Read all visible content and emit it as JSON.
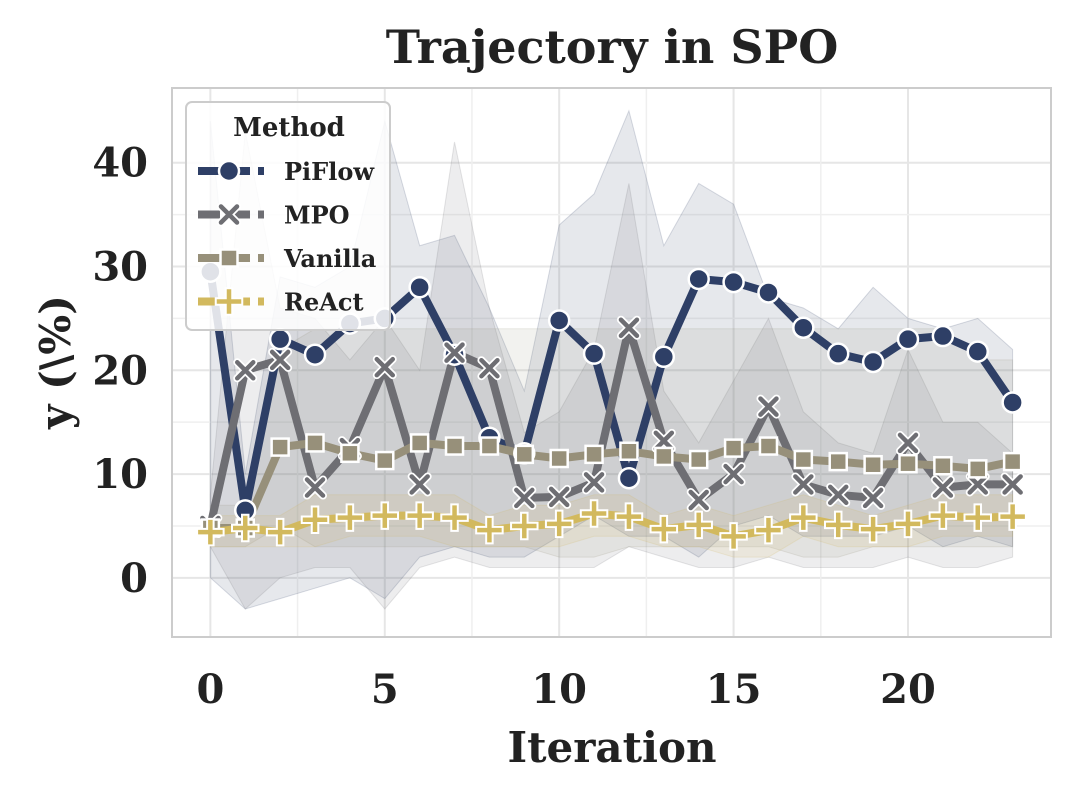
{
  "chart_data": {
    "type": "line",
    "title": "Trajectory in SPO",
    "xlabel": "Iteration",
    "ylabel": "y (\\%)",
    "xlim": [
      -1.1,
      24.1
    ],
    "ylim": [
      -5.7,
      47.2
    ],
    "xticks": [
      0,
      5,
      10,
      15,
      20
    ],
    "yticks": [
      0,
      10,
      20,
      30,
      40
    ],
    "grid": true,
    "legend": {
      "title": "Method",
      "placement": "top-left"
    },
    "x": [
      0,
      1,
      2,
      3,
      4,
      5,
      6,
      7,
      8,
      9,
      10,
      11,
      12,
      13,
      14,
      15,
      16,
      17,
      18,
      19,
      20,
      21,
      22,
      23
    ],
    "series": [
      {
        "name": "PiFlow",
        "color": "#2e3f66",
        "marker": "circle",
        "values": [
          29.5,
          6.5,
          23.0,
          21.5,
          24.5,
          25.0,
          28.0,
          21.5,
          13.5,
          12.0,
          24.8,
          21.6,
          9.6,
          21.3,
          28.8,
          28.5,
          27.5,
          24.1,
          21.6,
          20.8,
          23.0,
          23.3,
          21.8,
          16.9
        ],
        "band_lower": [
          0,
          -3,
          -2,
          -1,
          0,
          -2,
          2,
          3,
          2,
          2,
          4,
          6,
          4,
          4,
          2,
          5,
          6,
          4,
          4,
          4,
          5,
          3,
          4,
          3
        ],
        "band_upper": [
          44,
          10,
          29,
          28,
          30,
          44,
          32,
          33,
          26,
          18,
          34,
          37,
          45,
          32,
          38,
          36,
          27,
          26,
          24,
          28,
          25,
          24,
          25,
          22
        ]
      },
      {
        "name": "MPO",
        "color": "#6e6e73",
        "marker": "x",
        "values": [
          5.0,
          20.0,
          21.0,
          8.7,
          12.5,
          20.3,
          9.0,
          21.7,
          20.2,
          7.7,
          7.8,
          9.2,
          24.1,
          13.2,
          7.5,
          10.0,
          16.5,
          9.0,
          8.0,
          7.7,
          13.0,
          8.7,
          9.0,
          9.0
        ],
        "band_lower": [
          3,
          -3,
          0,
          1,
          1,
          -3,
          1,
          2,
          1,
          1,
          1,
          1,
          3,
          2,
          1,
          1,
          2,
          1,
          1,
          1,
          2,
          1,
          1,
          2
        ],
        "band_upper": [
          8,
          43,
          26,
          25,
          21,
          25,
          20,
          42,
          26,
          14,
          16,
          22,
          38,
          18,
          13,
          19,
          25,
          16,
          13,
          12,
          22,
          15,
          15,
          12
        ]
      },
      {
        "name": "Vanilla",
        "color": "#97907a",
        "marker": "square",
        "values": [
          4.8,
          4.8,
          12.6,
          13.0,
          12.0,
          11.3,
          13.0,
          12.7,
          12.7,
          11.9,
          11.5,
          11.9,
          12.2,
          11.7,
          11.4,
          12.5,
          12.7,
          11.4,
          11.2,
          10.9,
          11.0,
          10.8,
          10.5,
          11.2
        ],
        "band_lower": [
          3,
          3,
          5,
          3,
          3,
          3,
          3,
          3,
          3,
          3,
          2,
          2,
          3,
          3,
          3,
          3,
          3,
          2,
          2,
          3,
          3,
          3,
          3,
          3
        ],
        "band_upper": [
          7,
          7,
          22,
          24,
          24,
          24,
          24,
          24,
          24,
          24,
          24,
          24,
          24,
          24,
          24,
          24,
          24,
          24,
          24,
          24,
          24,
          24,
          21,
          21
        ]
      },
      {
        "name": "ReAct",
        "color": "#d2b95e",
        "marker": "plus",
        "values": [
          4.4,
          4.8,
          4.4,
          5.6,
          5.8,
          6.0,
          6.0,
          5.8,
          4.6,
          5.0,
          5.2,
          6.2,
          5.9,
          4.7,
          5.1,
          4.0,
          4.6,
          5.8,
          5.1,
          4.7,
          5.2,
          6.0,
          5.8,
          5.9
        ],
        "band_lower": [
          3,
          3,
          3,
          3,
          4,
          4,
          4,
          3,
          3,
          3,
          3,
          4,
          4,
          3,
          3,
          2,
          2,
          4,
          3,
          3,
          3,
          4,
          4,
          4
        ],
        "band_upper": [
          6,
          6,
          6,
          8,
          8,
          8,
          8,
          8,
          6,
          7,
          7,
          8,
          8,
          6,
          7,
          6,
          7,
          8,
          7,
          6,
          7,
          8,
          8,
          8
        ]
      }
    ]
  }
}
